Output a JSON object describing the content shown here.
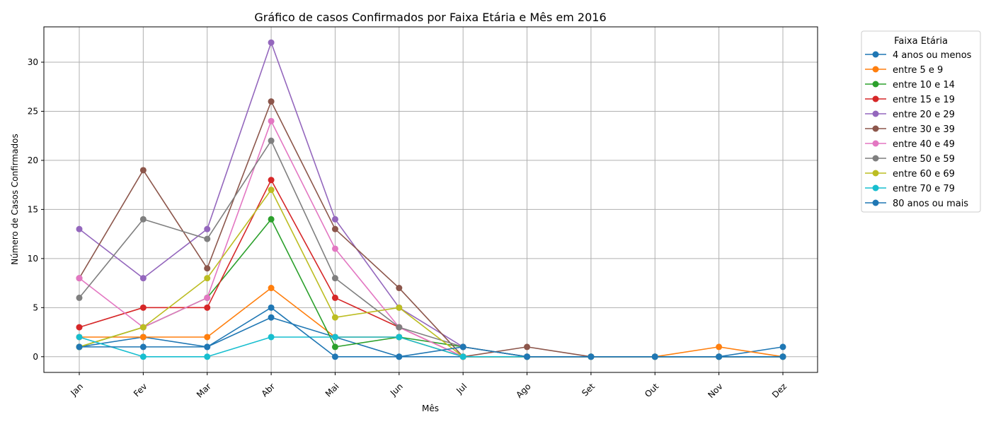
{
  "chart_data": {
    "type": "line",
    "title": "Gráfico de casos Confirmados por Faixa Etária e Mês em 2016",
    "xlabel": "Mês",
    "ylabel": "Número de Casos Confirmados",
    "categories": [
      "Jan",
      "Fev",
      "Mar",
      "Abr",
      "Mai",
      "Jun",
      "Jul",
      "Ago",
      "Set",
      "Out",
      "Nov",
      "Dez"
    ],
    "ylim": [
      -1.6,
      33.6
    ],
    "yticks": [
      0,
      5,
      10,
      15,
      20,
      25,
      30
    ],
    "grid": true,
    "legend_title": "Faixa Etária",
    "legend_position": "outside-right",
    "series": [
      {
        "name": "4 anos ou menos",
        "color": "#1f77b4",
        "values": [
          1,
          2,
          1,
          4,
          2,
          0,
          0,
          0,
          0,
          0,
          0,
          1
        ]
      },
      {
        "name": "entre 5 e 9",
        "color": "#ff7f0e",
        "values": [
          2,
          2,
          2,
          7,
          2,
          2,
          0,
          0,
          0,
          0,
          1,
          0
        ]
      },
      {
        "name": "entre 10 e 14",
        "color": "#2ca02c",
        "values": [
          1,
          3,
          6,
          14,
          1,
          2,
          1,
          0,
          0,
          0,
          0,
          0
        ]
      },
      {
        "name": "entre 15 e 19",
        "color": "#d62728",
        "values": [
          3,
          5,
          5,
          18,
          6,
          3,
          0,
          0,
          0,
          0,
          0,
          0
        ]
      },
      {
        "name": "entre 20 e 29",
        "color": "#9467bd",
        "values": [
          13,
          8,
          13,
          32,
          14,
          5,
          1,
          0,
          0,
          0,
          0,
          0
        ]
      },
      {
        "name": "entre 30 e 39",
        "color": "#8c564b",
        "values": [
          8,
          19,
          9,
          26,
          13,
          7,
          0,
          1,
          0,
          0,
          0,
          0
        ]
      },
      {
        "name": "entre 40 e 49",
        "color": "#e377c2",
        "values": [
          8,
          3,
          6,
          24,
          11,
          3,
          0,
          0,
          0,
          0,
          0,
          0
        ]
      },
      {
        "name": "entre 50 e 59",
        "color": "#7f7f7f",
        "values": [
          6,
          14,
          12,
          22,
          8,
          3,
          1,
          0,
          0,
          0,
          0,
          0
        ]
      },
      {
        "name": "entre 60 e 69",
        "color": "#bcbd22",
        "values": [
          1,
          3,
          8,
          17,
          4,
          5,
          0,
          0,
          0,
          0,
          0,
          0
        ]
      },
      {
        "name": "entre 70 e 79",
        "color": "#17becf",
        "values": [
          2,
          0,
          0,
          2,
          2,
          2,
          0,
          0,
          0,
          0,
          0,
          0
        ]
      },
      {
        "name": "80 anos ou mais",
        "color": "#1f77b4",
        "values": [
          1,
          1,
          1,
          5,
          0,
          0,
          1,
          0,
          0,
          0,
          0,
          0
        ]
      }
    ]
  }
}
